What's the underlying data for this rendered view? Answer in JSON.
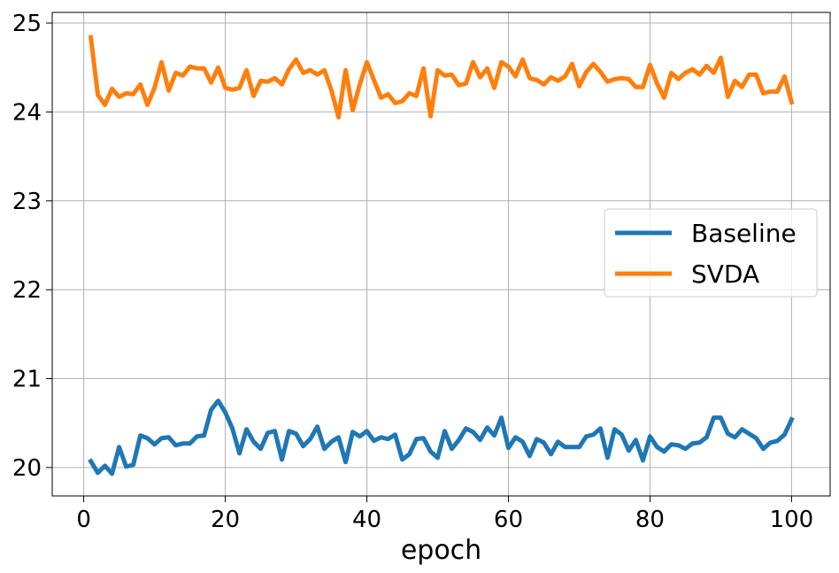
{
  "chart_data": {
    "type": "line",
    "title": "",
    "xlabel": "epoch",
    "ylabel": "",
    "xlim": [
      -4.45,
      105.45
    ],
    "ylim": [
      19.68,
      25.12
    ],
    "xticks": [
      0,
      20,
      40,
      60,
      80,
      100
    ],
    "yticks": [
      20,
      21,
      22,
      23,
      24,
      25
    ],
    "grid": true,
    "legend_position": "center-right",
    "x": [
      1,
      2,
      3,
      4,
      5,
      6,
      7,
      8,
      9,
      10,
      11,
      12,
      13,
      14,
      15,
      16,
      17,
      18,
      19,
      20,
      21,
      22,
      23,
      24,
      25,
      26,
      27,
      28,
      29,
      30,
      31,
      32,
      33,
      34,
      35,
      36,
      37,
      38,
      39,
      40,
      41,
      42,
      43,
      44,
      45,
      46,
      47,
      48,
      49,
      50,
      51,
      52,
      53,
      54,
      55,
      56,
      57,
      58,
      59,
      60,
      61,
      62,
      63,
      64,
      65,
      66,
      67,
      68,
      69,
      70,
      71,
      72,
      73,
      74,
      75,
      76,
      77,
      78,
      79,
      80,
      81,
      82,
      83,
      84,
      85,
      86,
      87,
      88,
      89,
      90,
      91,
      92,
      93,
      94,
      95,
      96,
      97,
      98,
      99,
      100
    ],
    "series": [
      {
        "name": "Baseline",
        "color": "#1f77b4",
        "values": [
          20.07,
          19.94,
          20.02,
          19.93,
          20.23,
          20.01,
          20.03,
          20.36,
          20.33,
          20.26,
          20.33,
          20.34,
          20.25,
          20.27,
          20.27,
          20.35,
          20.36,
          20.65,
          20.75,
          20.62,
          20.44,
          20.16,
          20.43,
          20.29,
          20.21,
          20.39,
          20.41,
          20.09,
          20.41,
          20.38,
          20.24,
          20.32,
          20.46,
          20.21,
          20.29,
          20.34,
          20.06,
          20.4,
          20.35,
          20.41,
          20.3,
          20.34,
          20.32,
          20.37,
          20.09,
          20.15,
          20.32,
          20.33,
          20.18,
          20.11,
          20.41,
          20.21,
          20.31,
          20.44,
          20.4,
          20.31,
          20.45,
          20.36,
          20.56,
          20.22,
          20.34,
          20.29,
          20.13,
          20.32,
          20.28,
          20.15,
          20.29,
          20.23,
          20.23,
          20.23,
          20.35,
          20.37,
          20.44,
          20.11,
          20.43,
          20.37,
          20.19,
          20.31,
          20.08,
          20.35,
          20.23,
          20.18,
          20.26,
          20.25,
          20.21,
          20.27,
          20.28,
          20.34,
          20.56,
          20.56,
          20.38,
          20.34,
          20.43,
          20.38,
          20.33,
          20.21,
          20.28,
          20.3,
          20.37,
          20.54
        ]
      },
      {
        "name": "SVDA",
        "color": "#ff7f0e",
        "values": [
          24.84,
          24.19,
          24.08,
          24.26,
          24.17,
          24.21,
          24.2,
          24.31,
          24.08,
          24.27,
          24.56,
          24.24,
          24.44,
          24.41,
          24.51,
          24.49,
          24.49,
          24.33,
          24.5,
          24.27,
          24.25,
          24.27,
          24.47,
          24.18,
          24.35,
          24.34,
          24.38,
          24.31,
          24.48,
          24.59,
          24.44,
          24.47,
          24.42,
          24.47,
          24.24,
          23.94,
          24.47,
          24.02,
          24.31,
          24.56,
          24.36,
          24.16,
          24.2,
          24.1,
          24.12,
          24.21,
          24.18,
          24.49,
          23.95,
          24.47,
          24.41,
          24.42,
          24.3,
          24.32,
          24.56,
          24.39,
          24.49,
          24.27,
          24.56,
          24.51,
          24.4,
          24.59,
          24.38,
          24.36,
          24.31,
          24.39,
          24.35,
          24.4,
          24.54,
          24.29,
          24.45,
          24.54,
          24.45,
          24.34,
          24.37,
          24.38,
          24.37,
          24.28,
          24.28,
          24.53,
          24.32,
          24.16,
          24.44,
          24.37,
          24.44,
          24.48,
          24.42,
          24.52,
          24.44,
          24.61,
          24.17,
          24.35,
          24.28,
          24.42,
          24.42,
          24.21,
          24.23,
          24.23,
          24.4,
          24.11
        ]
      }
    ]
  }
}
